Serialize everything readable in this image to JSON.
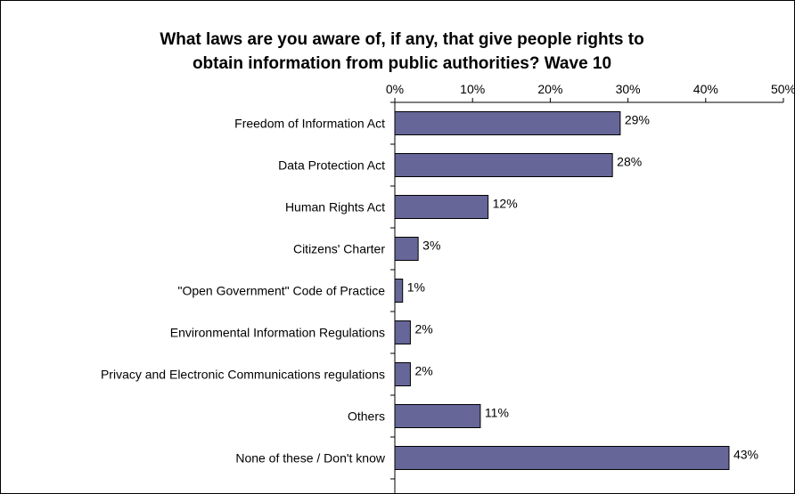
{
  "chart_data": {
    "type": "bar",
    "orientation": "horizontal",
    "title_lines": [
      "What laws are you aware of, if any, that give people rights to",
      "obtain information from public authorities? Wave 10"
    ],
    "categories": [
      "Freedom of Information Act",
      "Data Protection Act",
      "Human Rights Act",
      "Citizens' Charter",
      "\"Open Government\" Code of Practice",
      "Environmental Information Regulations",
      "Privacy and Electronic Communications regulations",
      "Others",
      "None of these / Don't know"
    ],
    "values": [
      29,
      28,
      12,
      3,
      1,
      2,
      2,
      11,
      43
    ],
    "value_labels": [
      "29%",
      "28%",
      "12%",
      "3%",
      "1%",
      "2%",
      "2%",
      "11%",
      "43%"
    ],
    "x_ticks": [
      "0%",
      "10%",
      "20%",
      "30%",
      "40%",
      "50%"
    ],
    "xlim": [
      0,
      50
    ],
    "xaxis_position": "top",
    "grid": false,
    "legend": "none",
    "colors": {
      "bar": "#666699",
      "bar_edge": "#000000",
      "axis": "#000000",
      "background": "#ffffff"
    }
  }
}
